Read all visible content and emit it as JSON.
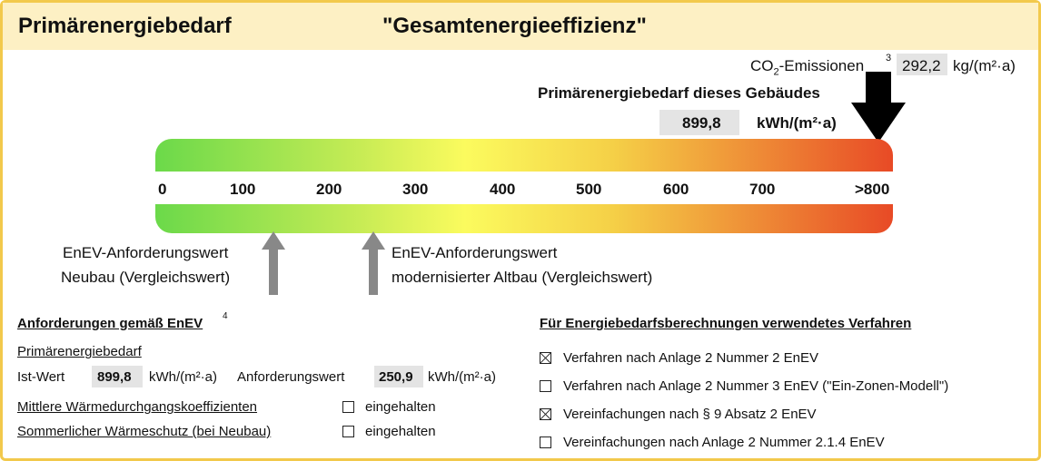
{
  "header": {
    "title_left": "Primärenergiebedarf",
    "title_center": "\"Gesamtenergieeffizienz\""
  },
  "co2": {
    "label_main": "CO",
    "label_sub": "2",
    "label_rest": "-Emissionen",
    "footnote": "3",
    "value": "292,2",
    "unit": "kg/(m²·a)"
  },
  "building": {
    "label": "Primärenergiebedarf dieses Gebäudes",
    "value": "899,8",
    "unit": "kWh/(m²·a)"
  },
  "scale": {
    "ticks": [
      "0",
      "100",
      "200",
      "300",
      "400",
      "500",
      "600",
      "700",
      ">800"
    ],
    "building_marker_value": 899.8,
    "neubau_marker_value": 130,
    "altbau_marker_value": 250.9
  },
  "arrows": {
    "neubau_line1": "EnEV-Anforderungswert",
    "neubau_line2": "Neubau (Vergleichswert)",
    "altbau_line1": "EnEV-Anforderungswert",
    "altbau_line2": "modernisierter Altbau (Vergleichswert)"
  },
  "requirements": {
    "heading": "Anforderungen gemäß EnEV",
    "footnote": "4",
    "sub_heading": "Primärenergiebedarf",
    "ist_label": "Ist-Wert",
    "ist_value": "899,8",
    "ist_unit": "kWh/(m²·a)",
    "anf_label": "Anforderungswert",
    "anf_value": "250,9",
    "anf_unit": "kWh/(m²·a)",
    "waerme_label": "Mittlere Wärmedurchgangskoeffizienten",
    "waerme_status": "eingehalten",
    "sommer_label": "Sommerlicher Wärmeschutz (bei Neubau)",
    "sommer_status": "eingehalten"
  },
  "verfahren": {
    "heading": "Für Energiebedarfsberechnungen verwendetes Verfahren",
    "items": [
      {
        "label": "Verfahren nach Anlage 2 Nummer 2 EnEV",
        "checked": true
      },
      {
        "label": "Verfahren nach Anlage 2 Nummer 3 EnEV (\"Ein-Zonen-Modell\")",
        "checked": false
      },
      {
        "label": "Vereinfachungen nach § 9 Absatz 2 EnEV",
        "checked": true
      },
      {
        "label": "Vereinfachungen nach Anlage 2 Nummer 2.1.4 EnEV",
        "checked": false
      }
    ]
  }
}
